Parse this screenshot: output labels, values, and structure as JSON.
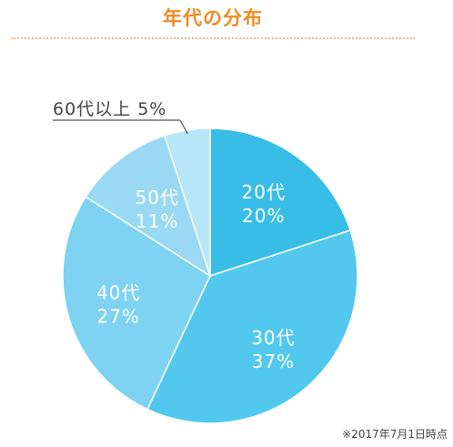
{
  "title": "年代の分布",
  "footnote": "※2017年7月1日時点",
  "chart_data": {
    "type": "pie",
    "start": "12 o'clock",
    "direction": "clockwise",
    "slices": [
      {
        "label": "20代",
        "percent_label": "20%",
        "value": 20,
        "color": "#38bde6"
      },
      {
        "label": "30代",
        "percent_label": "37%",
        "value": 37,
        "color": "#52c8ee"
      },
      {
        "label": "40代",
        "percent_label": "27%",
        "value": 27,
        "color": "#7dd3f1"
      },
      {
        "label": "50代",
        "percent_label": "11%",
        "value": 11,
        "color": "#9ad9f3"
      },
      {
        "label": "60代以上",
        "percent_label": "5%",
        "value": 5,
        "color": "#b6e6f7"
      }
    ],
    "outside_label": "60代以上 5%"
  }
}
